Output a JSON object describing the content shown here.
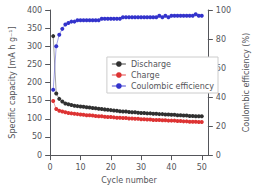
{
  "chart_data": {
    "type": "line",
    "xlabel": "Cycle number",
    "ylabel": "Specific capacity [mA h g⁻¹]",
    "y2label": "Coulombic efficiency (%)",
    "x": [
      1,
      2,
      3,
      4,
      5,
      6,
      7,
      8,
      9,
      10,
      11,
      12,
      13,
      14,
      15,
      16,
      17,
      18,
      19,
      20,
      21,
      22,
      23,
      24,
      25,
      26,
      27,
      28,
      29,
      30,
      31,
      32,
      33,
      34,
      35,
      36,
      37,
      38,
      39,
      40,
      41,
      42,
      43,
      44,
      45,
      46,
      47,
      48,
      49,
      50
    ],
    "series": [
      {
        "name": "Discharge",
        "color": "#303030",
        "marker": "circle",
        "values": [
          328,
          170,
          155,
          148,
          142,
          140,
          138,
          136,
          135,
          134,
          133,
          132,
          131,
          130,
          129,
          128,
          127,
          126,
          125,
          124,
          123,
          122,
          121,
          120,
          120,
          119,
          118,
          118,
          117,
          116,
          116,
          115,
          115,
          114,
          114,
          113,
          113,
          112,
          112,
          111,
          111,
          110,
          110,
          109,
          109,
          108,
          108,
          107,
          107,
          107
        ]
      },
      {
        "name": "Charge",
        "color": "#dd3333",
        "marker": "circle",
        "values": [
          149,
          127,
          122,
          120,
          118,
          116,
          115,
          114,
          113,
          112,
          111,
          110,
          110,
          109,
          108,
          107,
          107,
          106,
          105,
          105,
          104,
          103,
          103,
          102,
          102,
          101,
          101,
          100,
          100,
          99,
          99,
          98,
          98,
          97,
          97,
          97,
          96,
          96,
          95,
          95,
          95,
          94,
          94,
          93,
          93,
          92,
          92,
          92,
          91,
          91
        ]
      },
      {
        "name": "Coulombic efficiency",
        "color": "#3333cc",
        "marker": "circle",
        "axis": "y2",
        "values": [
          45,
          75,
          83,
          87,
          90,
          91,
          92,
          92,
          93,
          93,
          93,
          93,
          93,
          93,
          93,
          93,
          94,
          94,
          94,
          94,
          94,
          94,
          94,
          95,
          95,
          95,
          95,
          95,
          95,
          95,
          95,
          95,
          95,
          95,
          95,
          96,
          95,
          96,
          95,
          96,
          96,
          96,
          96,
          96,
          96,
          96,
          96,
          97,
          96,
          96
        ]
      }
    ],
    "xlim": [
      0,
      52
    ],
    "xticks": [
      0,
      10,
      20,
      30,
      40,
      50
    ],
    "ylim": [
      0,
      400
    ],
    "yticks": [
      0,
      50,
      100,
      150,
      200,
      250,
      300,
      350,
      400
    ],
    "y2lim": [
      0,
      100
    ],
    "y2ticks": [
      0,
      20,
      40,
      60,
      80,
      100
    ],
    "grid": false,
    "legend": "right"
  }
}
